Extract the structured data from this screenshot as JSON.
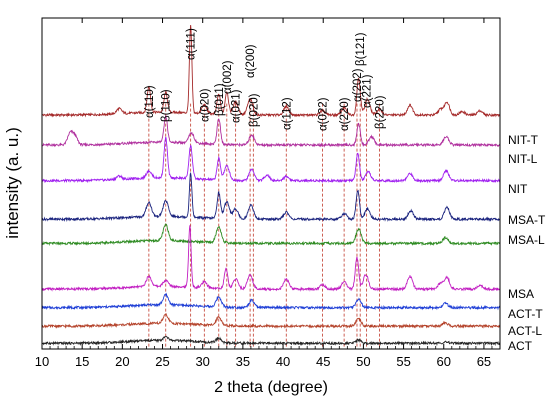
{
  "chart_data": {
    "type": "line",
    "title": "",
    "xlabel": "2 theta (degree)",
    "ylabel": "intensity (a. u.)",
    "xlim": [
      10,
      67
    ],
    "x_ticks": [
      10,
      15,
      20,
      25,
      30,
      35,
      40,
      45,
      50,
      55,
      60,
      65
    ],
    "x_tick_labels": [
      "10",
      "15",
      "20",
      "25",
      "30",
      "35",
      "40",
      "45",
      "50",
      "55",
      "60",
      "65"
    ],
    "y_ticks_shown": false,
    "grid": false,
    "reference_lines": [
      {
        "label": "α(110)",
        "x": 23.3,
        "color": "#c0392b"
      },
      {
        "label": "β(110)",
        "x": 25.4,
        "color": "#c0392b"
      },
      {
        "label": "α(111)",
        "x": 28.5,
        "color": "#c0392b"
      },
      {
        "label": "α(020)",
        "x": 30.2,
        "color": "#c0392b"
      },
      {
        "label": "β(011)",
        "x": 32.0,
        "color": "#c0392b"
      },
      {
        "label": "α(002)",
        "x": 33.0,
        "color": "#c0392b"
      },
      {
        "label": "α(021)",
        "x": 34.1,
        "color": "#c0392b"
      },
      {
        "label": "α(200)",
        "x": 35.9,
        "color": "#c0392b"
      },
      {
        "label": "β(020)",
        "x": 36.3,
        "color": "#c0392b"
      },
      {
        "label": "α(112)",
        "x": 40.4,
        "color": "#c0392b"
      },
      {
        "label": "α(022)",
        "x": 44.9,
        "color": "#c0392b"
      },
      {
        "label": "α(220)",
        "x": 47.6,
        "color": "#c0392b"
      },
      {
        "label": "α(202)",
        "x": 49.2,
        "color": "#c0392b"
      },
      {
        "label": "β(121)",
        "x": 49.6,
        "color": "#c0392b"
      },
      {
        "label": "α(221)",
        "x": 50.4,
        "color": "#c0392b"
      },
      {
        "label": "β(220)",
        "x": 52.0,
        "color": "#c0392b"
      }
    ],
    "series": [
      {
        "name": "NIT-T",
        "color": "#a52a2a",
        "offset": 8.2,
        "peaks": [
          [
            19.6,
            0.18
          ],
          [
            23.3,
            0.9
          ],
          [
            25.4,
            0.7
          ],
          [
            28.5,
            3.05
          ],
          [
            30.2,
            0.3
          ],
          [
            32.0,
            0.7
          ],
          [
            33.0,
            0.8
          ],
          [
            34.1,
            0.45
          ],
          [
            35.9,
            0.55
          ],
          [
            40.4,
            0.3
          ],
          [
            44.9,
            0.15
          ],
          [
            47.6,
            0.25
          ],
          [
            49.4,
            1.3
          ],
          [
            50.5,
            0.55
          ],
          [
            52.0,
            0.2
          ],
          [
            55.8,
            0.35
          ],
          [
            59.6,
            0.2
          ],
          [
            60.4,
            0.45
          ],
          [
            62.3,
            0.12
          ],
          [
            64.5,
            0.15
          ]
        ]
      },
      {
        "name": "NIT-L",
        "color": "#b0309e",
        "offset": 7.15,
        "peaks": [
          [
            13.5,
            0.4
          ],
          [
            14.1,
            0.3
          ],
          [
            25.4,
            0.9
          ],
          [
            28.6,
            0.35
          ],
          [
            32.0,
            0.9
          ],
          [
            36.1,
            0.35
          ],
          [
            49.4,
            0.75
          ],
          [
            51.0,
            0.3
          ],
          [
            60.3,
            0.3
          ]
        ]
      },
      {
        "name": "NIT",
        "color": "#a020f0",
        "offset": 5.9,
        "peaks": [
          [
            19.6,
            0.12
          ],
          [
            23.3,
            0.25
          ],
          [
            25.4,
            1.4
          ],
          [
            28.5,
            1.15
          ],
          [
            32.0,
            0.75
          ],
          [
            33.0,
            0.5
          ],
          [
            36.1,
            0.4
          ],
          [
            38.0,
            0.2
          ],
          [
            40.4,
            0.15
          ],
          [
            49.3,
            0.95
          ],
          [
            50.6,
            0.3
          ],
          [
            55.8,
            0.25
          ],
          [
            60.3,
            0.35
          ]
        ]
      },
      {
        "name": "MSA-T",
        "color": "#1a237e",
        "offset": 4.55,
        "peaks": [
          [
            23.3,
            0.5
          ],
          [
            25.4,
            0.55
          ],
          [
            28.5,
            1.55
          ],
          [
            32.0,
            0.9
          ],
          [
            33.0,
            0.6
          ],
          [
            34.1,
            0.35
          ],
          [
            36.0,
            0.5
          ],
          [
            40.4,
            0.25
          ],
          [
            47.6,
            0.2
          ],
          [
            49.3,
            1.0
          ],
          [
            50.5,
            0.35
          ],
          [
            55.9,
            0.3
          ],
          [
            60.4,
            0.4
          ]
        ]
      },
      {
        "name": "MSA-L",
        "color": "#2e8b22",
        "offset": 3.7,
        "peaks": [
          [
            25.4,
            0.55
          ],
          [
            32.0,
            0.55
          ],
          [
            49.4,
            0.5
          ],
          [
            60.2,
            0.2
          ]
        ]
      },
      {
        "name": "MSA",
        "color": "#c21fc2",
        "offset": 2.1,
        "peaks": [
          [
            23.3,
            0.35
          ],
          [
            25.4,
            0.2
          ],
          [
            28.4,
            2.15
          ],
          [
            30.2,
            0.2
          ],
          [
            32.9,
            0.7
          ],
          [
            34.1,
            0.35
          ],
          [
            35.9,
            0.5
          ],
          [
            40.4,
            0.35
          ],
          [
            44.9,
            0.15
          ],
          [
            47.6,
            0.25
          ],
          [
            49.2,
            1.1
          ],
          [
            50.3,
            0.5
          ],
          [
            55.8,
            0.45
          ],
          [
            59.6,
            0.2
          ],
          [
            60.4,
            0.4
          ],
          [
            64.5,
            0.15
          ]
        ]
      },
      {
        "name": "ACT-T",
        "color": "#1f3fd6",
        "offset": 1.45,
        "peaks": [
          [
            25.4,
            0.35
          ],
          [
            32.0,
            0.35
          ],
          [
            36.1,
            0.25
          ],
          [
            49.4,
            0.3
          ],
          [
            60.2,
            0.15
          ]
        ]
      },
      {
        "name": "ACT-L",
        "color": "#b5442c",
        "offset": 0.8,
        "peaks": [
          [
            25.4,
            0.3
          ],
          [
            32.0,
            0.3
          ],
          [
            49.4,
            0.25
          ],
          [
            60.2,
            0.12
          ]
        ]
      },
      {
        "name": "ACT",
        "color": "#222222",
        "offset": 0.2,
        "peaks": [
          [
            25.4,
            0.12
          ],
          [
            32.0,
            0.15
          ],
          [
            49.4,
            0.12
          ],
          [
            60.2,
            0.05
          ]
        ]
      }
    ]
  }
}
